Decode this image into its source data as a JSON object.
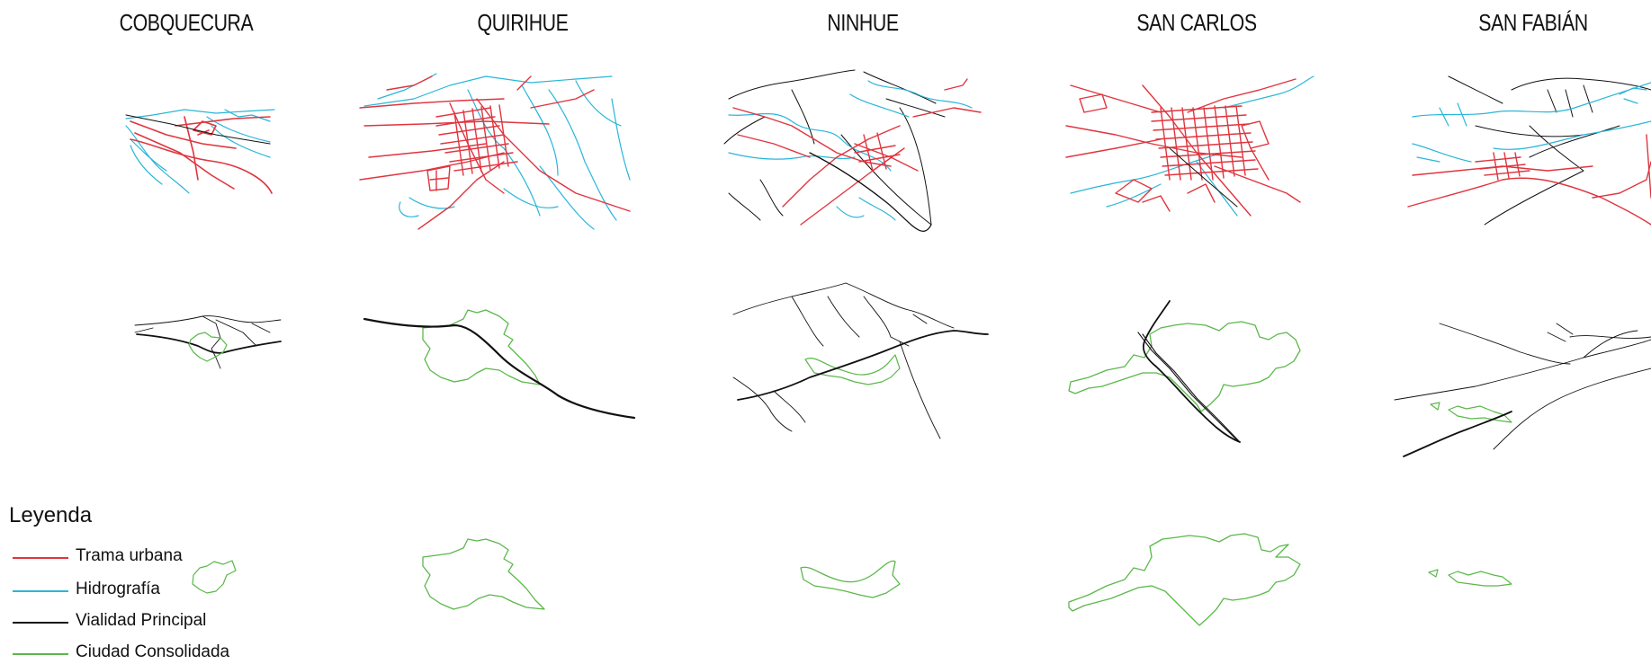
{
  "cities": [
    {
      "name": "COBQUECURA"
    },
    {
      "name": "QUIRIHUE"
    },
    {
      "name": "NINHUE"
    },
    {
      "name": "SAN CARLOS"
    },
    {
      "name": "SAN FABIÁN"
    }
  ],
  "legend": {
    "title": "Leyenda",
    "items": [
      {
        "label": "Trama urbana",
        "color": "#e0353f"
      },
      {
        "label": "Hidrografía",
        "color": "#29b6d8"
      },
      {
        "label": "Vialidad Principal",
        "color": "#111111"
      },
      {
        "label": "Ciudad Consolidada",
        "color": "#5bb84a"
      }
    ]
  },
  "colors": {
    "trama": "#e0353f",
    "hidro": "#29b6d8",
    "vial": "#111111",
    "ciudad": "#5bb84a",
    "background": "#ffffff"
  }
}
